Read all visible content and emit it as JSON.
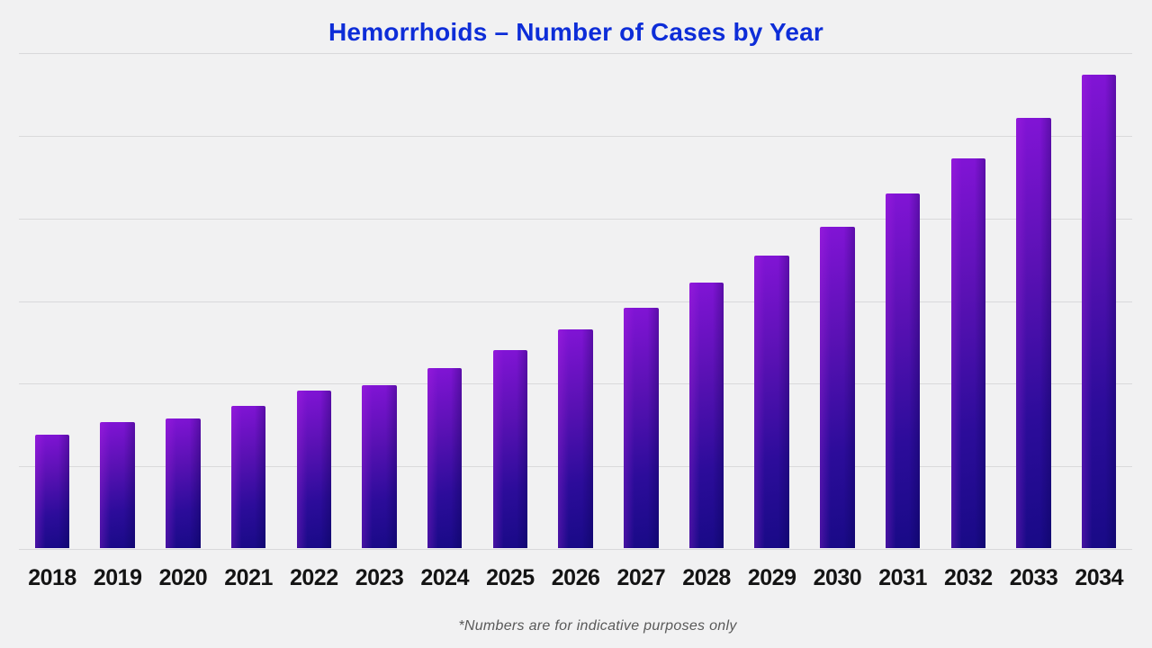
{
  "page": {
    "background_color": "#f1f1f2",
    "gridline_color": "#d9d9db"
  },
  "chart_data": {
    "type": "bar",
    "title": "Hemorrhoids – Number of Cases by Year",
    "title_color": "#0d2dd8",
    "categories": [
      "2018",
      "2019",
      "2020",
      "2021",
      "2022",
      "2023",
      "2024",
      "2025",
      "2026",
      "2027",
      "2028",
      "2029",
      "2030",
      "2031",
      "2032",
      "2033",
      "2034"
    ],
    "values": [
      1.37,
      1.52,
      1.57,
      1.72,
      1.91,
      1.97,
      2.18,
      2.4,
      2.65,
      2.91,
      3.21,
      3.54,
      3.89,
      4.29,
      4.72,
      5.2,
      5.73
    ],
    "value_units": "relative gridline units (y-axis has no tick labels; 1 unit = one horizontal gridline interval)",
    "xlabel": "",
    "ylabel": "",
    "ylim": [
      0,
      6
    ],
    "grid": "horizontal, 7 lines including baseline",
    "legend": "none",
    "bar_gradient": [
      "#8214d6",
      "#5a11b4",
      "#2c0c9a",
      "#180a86"
    ],
    "annotations": [
      "*Numbers are for indicative purposes only"
    ],
    "annotation_color": "#595959",
    "x_label_color": "#141414"
  }
}
